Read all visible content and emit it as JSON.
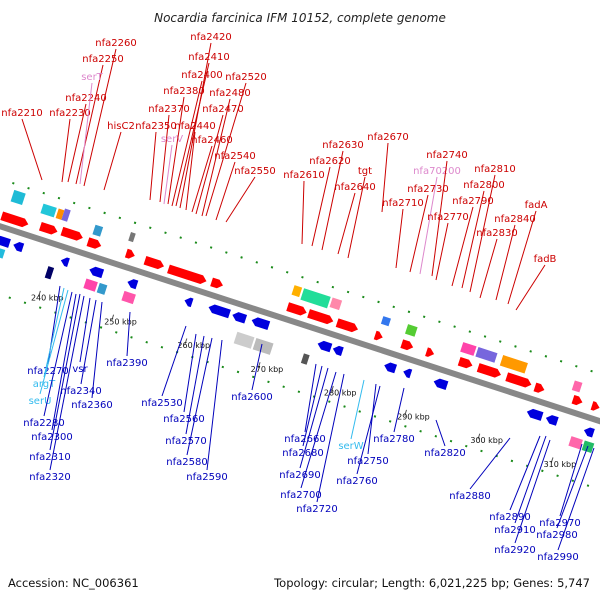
{
  "title": "Nocardia farcinica IFM 10152, complete genome",
  "footer": {
    "accession": "Accession: NC_006361",
    "summary": "Topology: circular; Length: 6,021,225 bp; Genes: 5,747"
  },
  "colors": {
    "forward": "#ff0000",
    "reverse": "#0000dd",
    "rna": "#dd88cc",
    "rna_rev": "#33bbee",
    "backbone": "#888888"
  },
  "scale": {
    "ticks": [
      "240 kbp",
      "250 kbp",
      "260 kbp",
      "270 kbp",
      "280 kbp",
      "290 kbp",
      "300 kbp",
      "310 kbp"
    ]
  },
  "forward_labels": [
    "nfa2210",
    "nfa2230",
    "nfa2240",
    "nfa2250",
    "serT",
    "nfa2260",
    "hisC2",
    "nfa2350",
    "nfa2370",
    "serV",
    "nfa2380",
    "nfa2400",
    "nfa2410",
    "nfa2420",
    "nfa2440",
    "nfa2460",
    "nfa2470",
    "nfa2480",
    "nfa2520",
    "nfa2540",
    "nfa2550",
    "nfa2610",
    "nfa2620",
    "nfa2630",
    "nfa2640",
    "tgt",
    "nfa2670",
    "nfa2710",
    "nfa2730",
    "nfa70200",
    "nfa2740",
    "nfa2770",
    "nfa2790",
    "nfa2800",
    "nfa2810",
    "nfa2830",
    "nfa2840",
    "fadA",
    "fadB"
  ],
  "reverse_labels": [
    "nfa2270",
    "argT",
    "serU",
    "nfa2280",
    "nfa2300",
    "nfa2310",
    "nfa2320",
    "vsr",
    "nfa2340",
    "nfa2360",
    "nfa2390",
    "nfa2530",
    "nfa2560",
    "nfa2570",
    "nfa2580",
    "nfa2590",
    "nfa2600",
    "nfa2660",
    "nfa2680",
    "nfa2690",
    "nfa2700",
    "nfa2720",
    "serW",
    "nfa2750",
    "nfa2760",
    "nfa2780",
    "nfa2820",
    "nfa2880",
    "nfa2890",
    "nfa2910",
    "nfa2920",
    "nfa2970",
    "nfa2980",
    "nfa2990"
  ]
}
